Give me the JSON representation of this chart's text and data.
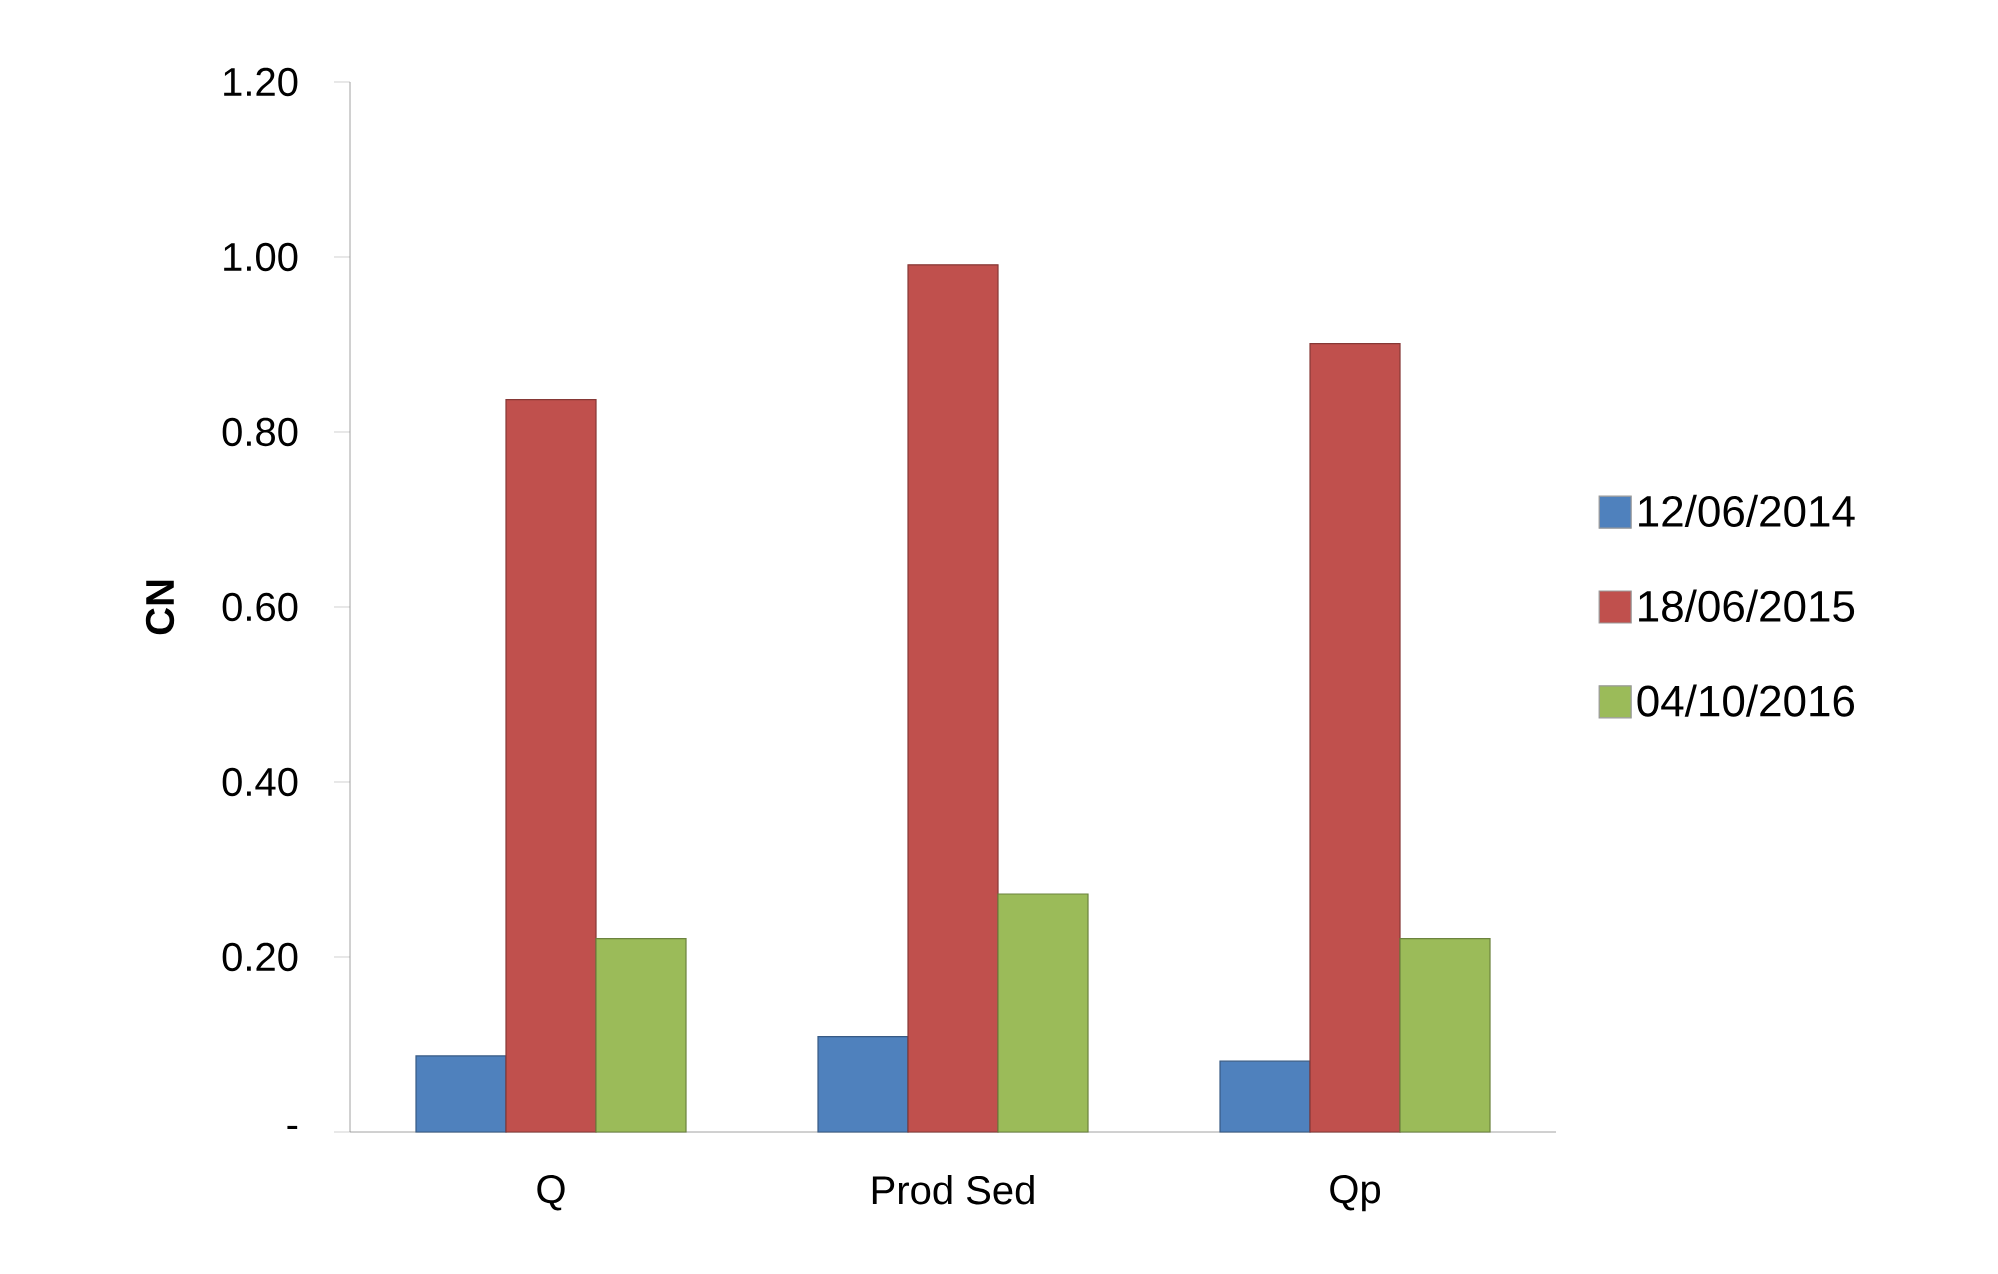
{
  "chart_data": {
    "type": "bar",
    "ylabel": "CN",
    "categories": [
      "Q",
      "Prod Sed",
      "Qp"
    ],
    "series": [
      {
        "name": "12/06/2014",
        "color": "#4f81bd",
        "values": [
          0.087,
          0.109,
          0.081
        ]
      },
      {
        "name": "18/06/2015",
        "color": "#c0504d",
        "values": [
          0.837,
          0.991,
          0.901
        ]
      },
      {
        "name": "04/10/2016",
        "color": "#9bbb59",
        "values": [
          0.221,
          0.272,
          0.221
        ]
      }
    ],
    "ylim": [
      0,
      1.2
    ],
    "yticks": [
      {
        "value": 0,
        "label": "-"
      },
      {
        "value": 0.2,
        "label": "0.20"
      },
      {
        "value": 0.4,
        "label": "0.40"
      },
      {
        "value": 0.6,
        "label": "0.60"
      },
      {
        "value": 0.8,
        "label": "0.80"
      },
      {
        "value": 1.0,
        "label": "1.00"
      },
      {
        "value": 1.2,
        "label": "1.20"
      }
    ],
    "grid": false,
    "legend": "right"
  }
}
